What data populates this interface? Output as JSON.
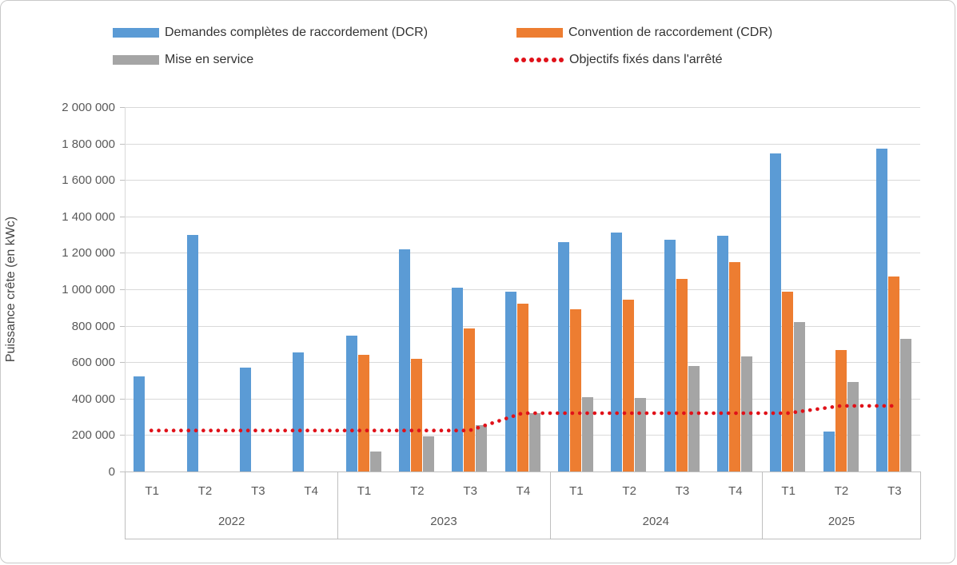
{
  "chart_data": {
    "type": "bar",
    "title": "",
    "ylabel": "Puissance crête (en kWc)",
    "xlabel": "",
    "ylim": [
      0,
      2000000
    ],
    "ytick_step": 200000,
    "ytick_labels": [
      "0",
      "200 000",
      "400 000",
      "600 000",
      "800 000",
      "1 000 000",
      "1 200 000",
      "1 400 000",
      "1 600 000",
      "1 800 000",
      "2 000 000"
    ],
    "grid": true,
    "legend_position": "top",
    "categories": [
      "T1",
      "T2",
      "T3",
      "T4",
      "T1",
      "T2",
      "T3",
      "T4",
      "T1",
      "T2",
      "T3",
      "T4",
      "T1",
      "T2",
      "T3"
    ],
    "year_groups": [
      {
        "year": "2022",
        "quarters": [
          "T1",
          "T2",
          "T3",
          "T4"
        ]
      },
      {
        "year": "2023",
        "quarters": [
          "T1",
          "T2",
          "T3",
          "T4"
        ]
      },
      {
        "year": "2024",
        "quarters": [
          "T1",
          "T2",
          "T3",
          "T4"
        ]
      },
      {
        "year": "2025",
        "quarters": [
          "T1",
          "T2",
          "T3"
        ]
      }
    ],
    "series": [
      {
        "name": "Demandes complètes de raccordement (DCR)",
        "type": "bar",
        "color": "#5B9BD5",
        "values": [
          520000,
          1300000,
          570000,
          655000,
          745000,
          1220000,
          1010000,
          985000,
          1260000,
          1310000,
          1270000,
          1295000,
          1745000,
          220000,
          1770000
        ]
      },
      {
        "name": "Convention de raccordement (CDR)",
        "type": "bar",
        "color": "#ED7D31",
        "values": [
          0,
          0,
          0,
          0,
          640000,
          620000,
          785000,
          920000,
          890000,
          945000,
          1055000,
          1150000,
          985000,
          665000,
          1070000
        ]
      },
      {
        "name": "Mise en service",
        "type": "bar",
        "color": "#A5A5A5",
        "values": [
          0,
          0,
          0,
          0,
          110000,
          195000,
          255000,
          320000,
          410000,
          405000,
          580000,
          630000,
          820000,
          490000,
          730000
        ]
      },
      {
        "name": "Objectifs fixés dans l'arrêté",
        "type": "dotted-line",
        "color": "#E01119",
        "values": [
          225000,
          225000,
          225000,
          225000,
          225000,
          225000,
          225000,
          320000,
          320000,
          320000,
          320000,
          320000,
          320000,
          360000,
          360000
        ]
      }
    ]
  },
  "style_colors": {
    "gridline": "#D9D9D9",
    "axis": "#BFBFBF",
    "tick_text": "#595959",
    "legend_text": "#333333"
  }
}
